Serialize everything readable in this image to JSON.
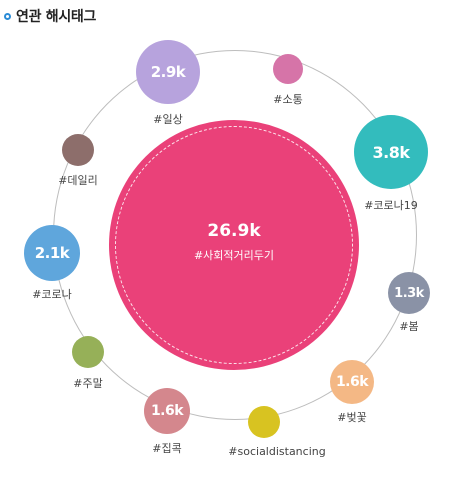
{
  "header": {
    "title": "연관 해시태그"
  },
  "main": {
    "value": "26.9k",
    "tag": "#사회적거리두기",
    "color": "#ea4179"
  },
  "bubbles": [
    {
      "value": "2.9k",
      "tag": "#일상",
      "color": "#b7a3dd"
    },
    {
      "value": "",
      "tag": "#소통",
      "color": "#d674a8"
    },
    {
      "value": "3.8k",
      "tag": "#코로나19",
      "color": "#33bcbd"
    },
    {
      "value": "",
      "tag": "#데일리",
      "color": "#8d6e6b"
    },
    {
      "value": "2.1k",
      "tag": "#코로나",
      "color": "#5fa6dc"
    },
    {
      "value": "1.3k",
      "tag": "#봄",
      "color": "#8a92a6"
    },
    {
      "value": "",
      "tag": "#주말",
      "color": "#96b058"
    },
    {
      "value": "1.6k",
      "tag": "#벚꽃",
      "color": "#f4b885"
    },
    {
      "value": "1.6k",
      "tag": "#집콕",
      "color": "#d4878d"
    },
    {
      "value": "",
      "tag": "#socialdistancing",
      "color": "#d8c321"
    }
  ]
}
